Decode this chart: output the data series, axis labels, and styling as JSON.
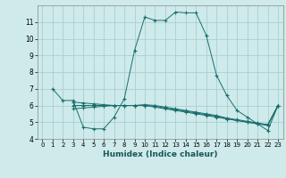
{
  "xlabel": "Humidex (Indice chaleur)",
  "bg_color": "#ceeaea",
  "grid_color": "#aacfcf",
  "line_color": "#1a6e6e",
  "xlim": [
    -0.5,
    23.5
  ],
  "ylim": [
    4,
    12
  ],
  "yticks": [
    4,
    5,
    6,
    7,
    8,
    9,
    10,
    11
  ],
  "xticks": [
    0,
    1,
    2,
    3,
    4,
    5,
    6,
    7,
    8,
    9,
    10,
    11,
    12,
    13,
    14,
    15,
    16,
    17,
    18,
    19,
    20,
    21,
    22,
    23
  ],
  "series": [
    {
      "x": [
        1,
        2,
        3,
        4,
        5,
        6,
        7,
        8,
        9,
        10,
        11,
        12,
        13,
        14,
        15,
        16,
        17,
        18,
        19,
        20,
        21,
        22,
        23
      ],
      "y": [
        7.0,
        6.3,
        6.3,
        4.7,
        4.6,
        4.6,
        5.3,
        6.4,
        9.3,
        11.3,
        11.1,
        11.1,
        11.6,
        11.55,
        11.55,
        10.2,
        7.8,
        6.6,
        5.7,
        5.3,
        4.9,
        4.5,
        6.0
      ]
    },
    {
      "x": [
        3,
        4,
        5,
        6,
        7,
        8,
        9,
        10,
        11,
        12,
        13,
        14,
        15,
        16,
        17,
        18,
        19,
        20,
        21,
        22,
        23
      ],
      "y": [
        5.8,
        5.85,
        5.9,
        5.95,
        6.0,
        6.0,
        6.0,
        6.0,
        5.9,
        5.8,
        5.7,
        5.6,
        5.5,
        5.4,
        5.3,
        5.2,
        5.1,
        5.0,
        4.9,
        4.8,
        6.0
      ]
    },
    {
      "x": [
        3,
        4,
        5,
        6,
        7,
        8,
        9,
        10,
        11,
        12,
        13,
        14,
        15,
        16,
        17,
        18,
        19,
        20,
        21,
        22,
        23
      ],
      "y": [
        6.0,
        6.0,
        6.0,
        6.0,
        6.0,
        6.0,
        6.0,
        6.0,
        5.95,
        5.85,
        5.75,
        5.65,
        5.55,
        5.45,
        5.35,
        5.2,
        5.1,
        5.0,
        4.9,
        4.85,
        6.0
      ]
    },
    {
      "x": [
        3,
        4,
        5,
        6,
        7,
        8,
        9,
        10,
        11,
        12,
        13,
        14,
        15,
        16,
        17,
        18,
        19,
        20,
        21,
        22,
        23
      ],
      "y": [
        6.2,
        6.15,
        6.1,
        6.05,
        6.0,
        6.0,
        6.0,
        6.05,
        6.0,
        5.9,
        5.8,
        5.7,
        5.6,
        5.5,
        5.4,
        5.25,
        5.15,
        5.05,
        4.95,
        4.85,
        6.0
      ]
    }
  ]
}
